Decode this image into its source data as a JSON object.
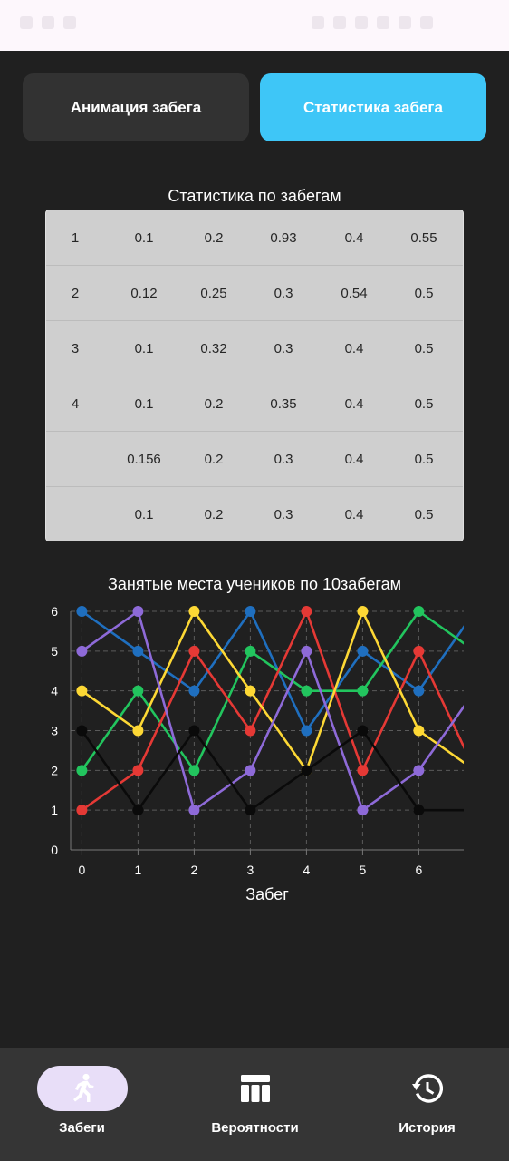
{
  "tabs": {
    "animation_label": "Анимация забега",
    "statistics_label": "Статистика забега"
  },
  "table": {
    "title": "Статистика по забегам",
    "rows": [
      [
        "1",
        "0.1",
        "0.2",
        "0.93",
        "0.4",
        "0.55"
      ],
      [
        "2",
        "0.12",
        "0.25",
        "0.3",
        "0.54",
        "0.5"
      ],
      [
        "3",
        "0.1",
        "0.32",
        "0.3",
        "0.4",
        "0.5"
      ],
      [
        "4",
        "0.1",
        "0.2",
        "0.35",
        "0.4",
        "0.5"
      ],
      [
        "",
        "0.156",
        "0.2",
        "0.3",
        "0.4",
        "0.5"
      ],
      [
        "",
        "0.1",
        "0.2",
        "0.3",
        "0.4",
        "0.5"
      ]
    ]
  },
  "chart_data": {
    "type": "line",
    "title": "Занятые места учеников по 10забегам",
    "xlabel": "Забег",
    "ylabel": "",
    "x": [
      0,
      1,
      2,
      3,
      4,
      5,
      6,
      7
    ],
    "x_ticks": [
      "0",
      "1",
      "2",
      "3",
      "4",
      "5",
      "6"
    ],
    "y_ticks": [
      "0",
      "1",
      "2",
      "3",
      "4",
      "5",
      "6"
    ],
    "xlim": [
      -0.2,
      6.8
    ],
    "ylim": [
      0,
      6
    ],
    "grid": true,
    "series": [
      {
        "color": "#1f6fbf",
        "values": [
          6,
          5,
          4,
          6,
          3,
          5,
          4,
          6
        ]
      },
      {
        "color": "#22c55e",
        "values": [
          2,
          4,
          2,
          5,
          4,
          4,
          6,
          5
        ]
      },
      {
        "color": "#e53935",
        "values": [
          1,
          2,
          5,
          3,
          6,
          2,
          5,
          2
        ]
      },
      {
        "color": "#fdd835",
        "values": [
          4,
          3,
          6,
          4,
          2,
          6,
          3,
          2
        ]
      },
      {
        "color": "#8e6ad8",
        "values": [
          5,
          6,
          1,
          2,
          5,
          1,
          2,
          4
        ]
      },
      {
        "color": "#0a0a0a",
        "values": [
          3,
          1,
          3,
          1,
          2,
          3,
          1,
          1
        ]
      }
    ]
  },
  "nav": {
    "items": [
      {
        "label": "Забеги",
        "icon": "run-icon"
      },
      {
        "label": "Вероятности",
        "icon": "table-icon"
      },
      {
        "label": "История",
        "icon": "history-icon"
      }
    ]
  }
}
